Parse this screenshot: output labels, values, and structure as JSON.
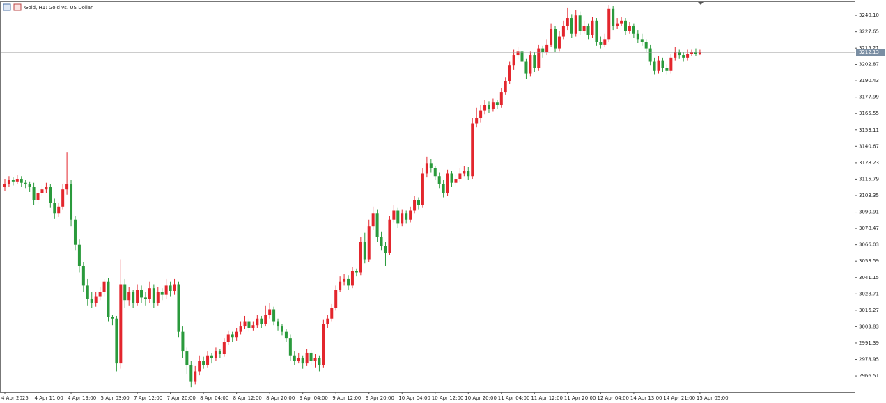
{
  "chart_data": {
    "type": "candlestick",
    "title": "Gold, H1: Gold vs. US Dollar",
    "up_color": "#e3262d",
    "down_color": "#2a9a3c",
    "current_price": 3212.13,
    "ylim": [
      2954.4,
      3250.7
    ],
    "yticks": [
      {
        "value": 3240.1,
        "label": "3240.10"
      },
      3227.65,
      3215.21,
      3202.87,
      3190.43,
      3177.99,
      3165.55,
      3153.11,
      3140.67,
      3128.23,
      3115.79,
      3103.35,
      3090.91,
      3078.47,
      3066.03,
      3053.59,
      3041.15,
      3028.71,
      3016.27,
      3003.83,
      2991.39,
      2978.95,
      2966.51
    ],
    "categories": [
      "4 Apr 2025",
      null,
      null,
      null,
      null,
      null,
      null,
      null,
      "4 Apr 11:00",
      null,
      null,
      null,
      null,
      null,
      null,
      null,
      "4 Apr 19:00",
      null,
      null,
      null,
      null,
      null,
      null,
      null,
      "5 Apr 03:00",
      null,
      null,
      null,
      null,
      null,
      null,
      null,
      "7 Apr 12:00",
      null,
      null,
      null,
      null,
      null,
      null,
      null,
      "7 Apr 20:00",
      null,
      null,
      null,
      null,
      null,
      null,
      null,
      "8 Apr 04:00",
      null,
      null,
      null,
      null,
      null,
      null,
      null,
      "8 Apr 12:00",
      null,
      null,
      null,
      null,
      null,
      null,
      null,
      "8 Apr 20:00",
      null,
      null,
      null,
      null,
      null,
      null,
      null,
      "9 Apr 04:00",
      null,
      null,
      null,
      null,
      null,
      null,
      null,
      "9 Apr 12:00",
      null,
      null,
      null,
      null,
      null,
      null,
      null,
      "9 Apr 20:00",
      null,
      null,
      null,
      null,
      null,
      null,
      null,
      "10 Apr 04:00",
      null,
      null,
      null,
      null,
      null,
      null,
      null,
      "10 Apr 12:00",
      null,
      null,
      null,
      null,
      null,
      null,
      null,
      "10 Apr 20:00",
      null,
      null,
      null,
      null,
      null,
      null,
      null,
      "11 Apr 04:00",
      null,
      null,
      null,
      null,
      null,
      null,
      null,
      "11 Apr 12:00",
      null,
      null,
      null,
      null,
      null,
      null,
      null,
      "11 Apr 20:00",
      null,
      null,
      null,
      null,
      null,
      null,
      null,
      "12 Apr 04:00",
      null,
      null,
      null,
      null,
      null,
      null,
      null,
      "14 Apr 13:00",
      null,
      null,
      null,
      null,
      null,
      null,
      null,
      "14 Apr 21:00",
      null,
      null,
      null,
      null,
      null,
      null,
      null,
      "15 Apr 05:00"
    ],
    "candles": [
      [
        3110,
        3116,
        3107,
        3112
      ],
      [
        3112,
        3118,
        3110,
        3115
      ],
      [
        3115,
        3117,
        3111,
        3114
      ],
      [
        3114,
        3119,
        3112,
        3116
      ],
      [
        3116,
        3118,
        3110,
        3113
      ],
      [
        3113,
        3115,
        3109,
        3112
      ],
      [
        3112,
        3114,
        3106,
        3110
      ],
      [
        3110,
        3113,
        3096,
        3100
      ],
      [
        3100,
        3108,
        3097,
        3105
      ],
      [
        3105,
        3111,
        3103,
        3108
      ],
      [
        3108,
        3113,
        3105,
        3110
      ],
      [
        3110,
        3112,
        3094,
        3098
      ],
      [
        3098,
        3101,
        3086,
        3090
      ],
      [
        3090,
        3098,
        3087,
        3095
      ],
      [
        3095,
        3112,
        3093,
        3108
      ],
      [
        3108,
        3136,
        3104,
        3112
      ],
      [
        3112,
        3115,
        3080,
        3085
      ],
      [
        3085,
        3088,
        3062,
        3066
      ],
      [
        3066,
        3070,
        3045,
        3050
      ],
      [
        3050,
        3053,
        3030,
        3035
      ],
      [
        3035,
        3040,
        3020,
        3025
      ],
      [
        3025,
        3030,
        3018,
        3022
      ],
      [
        3022,
        3030,
        3019,
        3027
      ],
      [
        3027,
        3034,
        3024,
        3030
      ],
      [
        3030,
        3040,
        3027,
        3038
      ],
      [
        3038,
        3041,
        3008,
        3011
      ],
      [
        3011,
        3013,
        3005,
        3010
      ],
      [
        3010,
        3012,
        2970,
        2976
      ],
      [
        2976,
        3055,
        2972,
        3036
      ],
      [
        3036,
        3040,
        3018,
        3024
      ],
      [
        3024,
        3034,
        3020,
        3030
      ],
      [
        3030,
        3032,
        3018,
        3022
      ],
      [
        3022,
        3036,
        3020,
        3032
      ],
      [
        3032,
        3035,
        3022,
        3026
      ],
      [
        3026,
        3030,
        3020,
        3025
      ],
      [
        3025,
        3038,
        3022,
        3033
      ],
      [
        3033,
        3036,
        3018,
        3022
      ],
      [
        3022,
        3034,
        3020,
        3030
      ],
      [
        3030,
        3033,
        3024,
        3028
      ],
      [
        3028,
        3040,
        3025,
        3035
      ],
      [
        3035,
        3038,
        3027,
        3031
      ],
      [
        3031,
        3040,
        3028,
        3036
      ],
      [
        3036,
        3038,
        2996,
        3000
      ],
      [
        3000,
        3004,
        2980,
        2985
      ],
      [
        2985,
        2988,
        2968,
        2975
      ],
      [
        2975,
        2978,
        2958,
        2962
      ],
      [
        2962,
        2974,
        2960,
        2970
      ],
      [
        2970,
        2982,
        2967,
        2978
      ],
      [
        2978,
        2981,
        2972,
        2975
      ],
      [
        2975,
        2985,
        2973,
        2982
      ],
      [
        2982,
        2984,
        2976,
        2980
      ],
      [
        2980,
        2988,
        2978,
        2985
      ],
      [
        2985,
        2987,
        2980,
        2983
      ],
      [
        2983,
        2995,
        2981,
        2992
      ],
      [
        2992,
        3001,
        2990,
        2998
      ],
      [
        2998,
        3000,
        2992,
        2996
      ],
      [
        2996,
        3003,
        2993,
        3000
      ],
      [
        3000,
        3008,
        2998,
        3004
      ],
      [
        3004,
        3012,
        3002,
        3008
      ],
      [
        3008,
        3010,
        3000,
        3003
      ],
      [
        3003,
        3008,
        3001,
        3005
      ],
      [
        3005,
        3013,
        3003,
        3010
      ],
      [
        3010,
        3012,
        3003,
        3006
      ],
      [
        3006,
        3020,
        3004,
        3013
      ],
      [
        3013,
        3022,
        3010,
        3017
      ],
      [
        3017,
        3019,
        3005,
        3008
      ],
      [
        3008,
        3010,
        3001,
        3004
      ],
      [
        3004,
        3006,
        2997,
        3000
      ],
      [
        3000,
        3002,
        2992,
        2995
      ],
      [
        2995,
        2998,
        2978,
        2982
      ],
      [
        2982,
        2985,
        2975,
        2978
      ],
      [
        2978,
        2984,
        2976,
        2980
      ],
      [
        2980,
        2982,
        2972,
        2976
      ],
      [
        2976,
        2987,
        2974,
        2984
      ],
      [
        2984,
        2986,
        2975,
        2978
      ],
      [
        2978,
        2983,
        2973,
        2980
      ],
      [
        2980,
        2982,
        2970,
        2975
      ],
      [
        2975,
        3009,
        2973,
        3006
      ],
      [
        3006,
        3013,
        3003,
        3010
      ],
      [
        3010,
        3021,
        3008,
        3018
      ],
      [
        3018,
        3035,
        3016,
        3032
      ],
      [
        3032,
        3042,
        3030,
        3038
      ],
      [
        3038,
        3044,
        3035,
        3040
      ],
      [
        3040,
        3043,
        3032,
        3035
      ],
      [
        3035,
        3049,
        3033,
        3046
      ],
      [
        3046,
        3048,
        3042,
        3045
      ],
      [
        3045,
        3072,
        3043,
        3068
      ],
      [
        3068,
        3075,
        3052,
        3055
      ],
      [
        3055,
        3085,
        3053,
        3080
      ],
      [
        3080,
        3095,
        3077,
        3090
      ],
      [
        3090,
        3093,
        3068,
        3072
      ],
      [
        3072,
        3076,
        3062,
        3065
      ],
      [
        3065,
        3068,
        3050,
        3060
      ],
      [
        3060,
        3088,
        3058,
        3085
      ],
      [
        3085,
        3096,
        3083,
        3092
      ],
      [
        3092,
        3094,
        3079,
        3082
      ],
      [
        3082,
        3093,
        3080,
        3090
      ],
      [
        3090,
        3092,
        3082,
        3085
      ],
      [
        3085,
        3095,
        3083,
        3092
      ],
      [
        3092,
        3103,
        3090,
        3100
      ],
      [
        3100,
        3102,
        3093,
        3096
      ],
      [
        3096,
        3124,
        3094,
        3120
      ],
      [
        3120,
        3133,
        3117,
        3128
      ],
      [
        3128,
        3131,
        3121,
        3124
      ],
      [
        3124,
        3126,
        3115,
        3118
      ],
      [
        3118,
        3121,
        3109,
        3112
      ],
      [
        3112,
        3115,
        3102,
        3105
      ],
      [
        3105,
        3123,
        3103,
        3120
      ],
      [
        3120,
        3122,
        3110,
        3113
      ],
      [
        3113,
        3119,
        3111,
        3116
      ],
      [
        3116,
        3124,
        3114,
        3120
      ],
      [
        3120,
        3126,
        3118,
        3122
      ],
      [
        3122,
        3125,
        3115,
        3118
      ],
      [
        3118,
        3162,
        3116,
        3158
      ],
      [
        3158,
        3170,
        3155,
        3162
      ],
      [
        3162,
        3172,
        3159,
        3168
      ],
      [
        3168,
        3176,
        3165,
        3172
      ],
      [
        3172,
        3175,
        3166,
        3169
      ],
      [
        3169,
        3177,
        3167,
        3174
      ],
      [
        3174,
        3176,
        3169,
        3172
      ],
      [
        3172,
        3185,
        3170,
        3182
      ],
      [
        3182,
        3193,
        3180,
        3190
      ],
      [
        3190,
        3205,
        3188,
        3202
      ],
      [
        3202,
        3214,
        3199,
        3210
      ],
      [
        3210,
        3216,
        3207,
        3213
      ],
      [
        3213,
        3216,
        3202,
        3205
      ],
      [
        3205,
        3207,
        3192,
        3196
      ],
      [
        3196,
        3213,
        3194,
        3210
      ],
      [
        3210,
        3212,
        3197,
        3200
      ],
      [
        3200,
        3218,
        3198,
        3215
      ],
      [
        3215,
        3217,
        3208,
        3212
      ],
      [
        3212,
        3222,
        3210,
        3218
      ],
      [
        3218,
        3234,
        3216,
        3230
      ],
      [
        3230,
        3232,
        3212,
        3215
      ],
      [
        3215,
        3228,
        3213,
        3224
      ],
      [
        3224,
        3236,
        3222,
        3232
      ],
      [
        3232,
        3246,
        3229,
        3238
      ],
      [
        3238,
        3241,
        3223,
        3226
      ],
      [
        3226,
        3244,
        3224,
        3240
      ],
      [
        3240,
        3243,
        3225,
        3228
      ],
      [
        3228,
        3236,
        3226,
        3232
      ],
      [
        3232,
        3234,
        3222,
        3225
      ],
      [
        3225,
        3239,
        3223,
        3236
      ],
      [
        3236,
        3238,
        3217,
        3220
      ],
      [
        3220,
        3224,
        3215,
        3218
      ],
      [
        3218,
        3226,
        3216,
        3222
      ],
      [
        3222,
        3248,
        3220,
        3245
      ],
      [
        3245,
        3247,
        3229,
        3232
      ],
      [
        3232,
        3238,
        3230,
        3234
      ],
      [
        3234,
        3239,
        3232,
        3236
      ],
      [
        3236,
        3238,
        3225,
        3228
      ],
      [
        3228,
        3235,
        3226,
        3232
      ],
      [
        3232,
        3234,
        3223,
        3226
      ],
      [
        3226,
        3229,
        3219,
        3222
      ],
      [
        3222,
        3226,
        3217,
        3220
      ],
      [
        3220,
        3222,
        3212,
        3215
      ],
      [
        3215,
        3218,
        3202,
        3205
      ],
      [
        3205,
        3208,
        3195,
        3198
      ],
      [
        3198,
        3209,
        3196,
        3206
      ],
      [
        3206,
        3208,
        3197,
        3200
      ],
      [
        3200,
        3203,
        3195,
        3198
      ],
      [
        3198,
        3211,
        3196,
        3208
      ],
      [
        3208,
        3216,
        3206,
        3212
      ],
      [
        3212,
        3214,
        3207,
        3210
      ],
      [
        3210,
        3212,
        3205,
        3208
      ],
      [
        3208,
        3214,
        3206,
        3211
      ],
      [
        3211,
        3214,
        3209,
        3212
      ],
      [
        3212,
        3215,
        3209,
        3211
      ],
      [
        3211,
        3214,
        3210,
        3212
      ]
    ]
  }
}
